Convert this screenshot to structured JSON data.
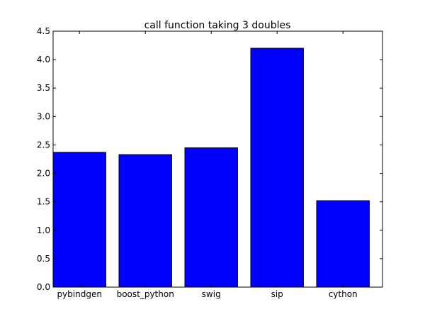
{
  "chart_data": {
    "type": "bar",
    "title": "call function taking 3 doubles",
    "xlabel": "",
    "ylabel": "",
    "categories": [
      "pybindgen",
      "boost_python",
      "swig",
      "sip",
      "cython"
    ],
    "values": [
      2.37,
      2.33,
      2.45,
      4.2,
      1.52
    ],
    "ylim": [
      0,
      4.5
    ],
    "yticks": [
      "0.0",
      "0.5",
      "1.0",
      "1.5",
      "2.0",
      "2.5",
      "3.0",
      "3.5",
      "4.0",
      "4.5"
    ],
    "grid": false,
    "bar_color": "#0000ff",
    "bar_edge_color": "#000000"
  }
}
